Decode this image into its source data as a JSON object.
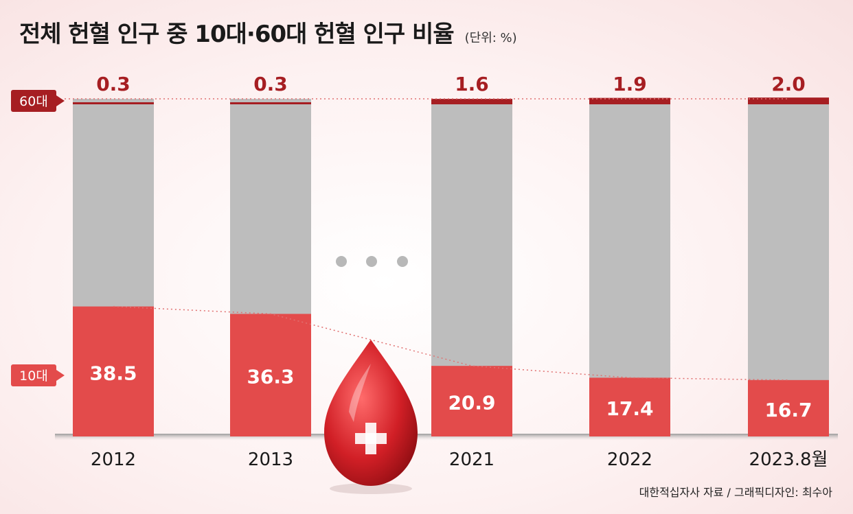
{
  "chart_data": {
    "type": "bar",
    "title": "전체 헌혈 인구 중 10대·60대 헌혈 인구 비율",
    "unit": "(단위: %)",
    "categories": [
      "2012",
      "2013",
      "2021",
      "2022",
      "2023.8월"
    ],
    "series": [
      {
        "name": "10대",
        "values": [
          38.5,
          36.3,
          20.9,
          17.4,
          16.7
        ]
      },
      {
        "name": "60대",
        "values": [
          0.3,
          0.3,
          1.6,
          1.9,
          2.0
        ]
      }
    ],
    "teen_labels": [
      "38.5",
      "36.3",
      "20.9",
      "17.4",
      "16.7"
    ],
    "senior_labels": [
      "0.3",
      "0.3",
      "1.6",
      "1.9",
      "2.0"
    ],
    "ylim": [
      0,
      100
    ],
    "colors": {
      "teen": "#e34b4b",
      "senior": "#a61e22",
      "rest": "#bdbdbd"
    }
  },
  "source": "대한적십자사 자료 / 그래픽디자인: 최수아"
}
